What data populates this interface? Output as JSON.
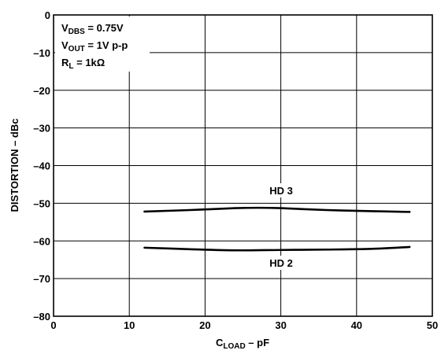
{
  "chart_data": {
    "type": "line",
    "xlabel": {
      "main": "C",
      "sub": "LOAD",
      "rest": " – pF"
    },
    "ylabel": "DISTORTION – dBc",
    "xlim": [
      0,
      50
    ],
    "ylim": [
      -80,
      0
    ],
    "xticks": [
      "0",
      "10",
      "20",
      "30",
      "40",
      "50"
    ],
    "yticks": [
      "0",
      "–10",
      "–20",
      "–30",
      "–40",
      "–50",
      "–60",
      "–70",
      "–80"
    ],
    "xtick_values": [
      0,
      10,
      20,
      30,
      40,
      50
    ],
    "ytick_values": [
      0,
      -10,
      -20,
      -30,
      -40,
      -50,
      -60,
      -70,
      -80
    ],
    "grid": true,
    "annotations": [
      {
        "main": "V",
        "sub": "DBS",
        "rest": " = 0.75V"
      },
      {
        "main": "V",
        "sub": "OUT",
        "rest": " = 1V p-p"
      },
      {
        "main": "R",
        "sub": "L",
        "rest": " = 1kΩ"
      }
    ],
    "series": [
      {
        "name": "HD 3",
        "x": [
          12,
          18,
          24,
          27,
          30,
          36,
          42,
          47
        ],
        "y": [
          -52.2,
          -51.8,
          -51.3,
          -51.2,
          -51.3,
          -51.8,
          -52.1,
          -52.3
        ]
      },
      {
        "name": "HD 2",
        "x": [
          12,
          18,
          24,
          30,
          36,
          42,
          47
        ],
        "y": [
          -61.8,
          -62.2,
          -62.5,
          -62.4,
          -62.3,
          -62.1,
          -61.6
        ]
      }
    ]
  }
}
